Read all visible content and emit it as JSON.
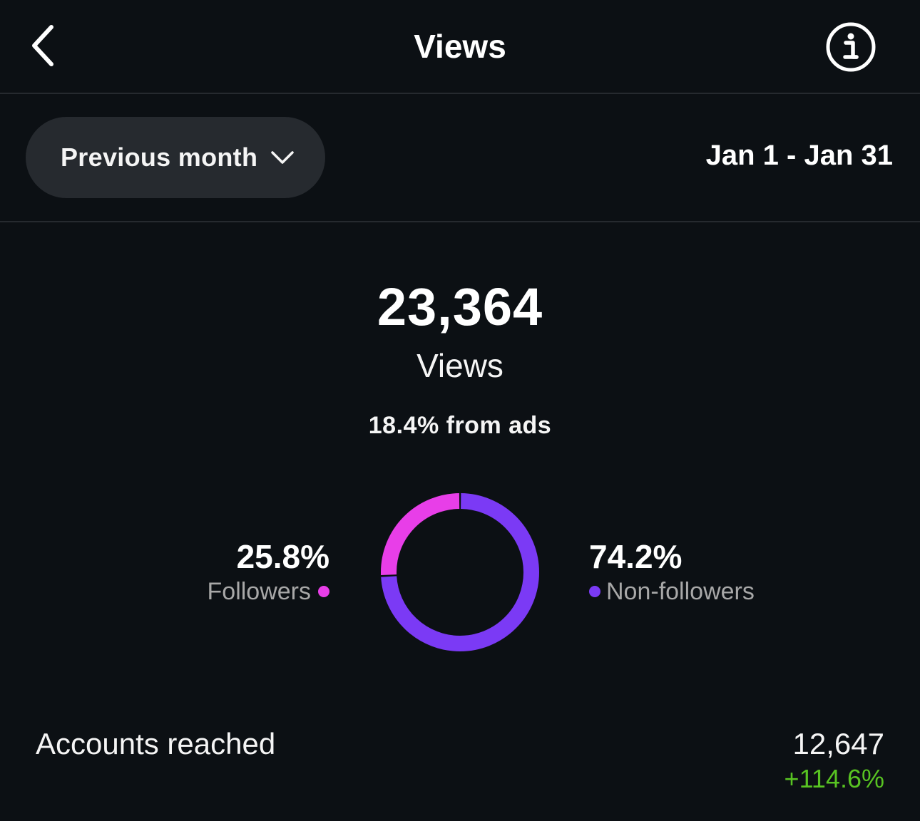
{
  "header": {
    "title": "Views",
    "back_icon": "chevron-left-icon",
    "info_icon": "info-icon"
  },
  "filter": {
    "period_label": "Previous month",
    "period_icon": "chevron-down-icon",
    "date_range": "Jan 1 - Jan 31"
  },
  "summary": {
    "total_value": "23,364",
    "total_label": "Views",
    "ads_note": "18.4% from ads"
  },
  "chart_data": {
    "type": "pie",
    "categories": [
      "Followers",
      "Non-followers"
    ],
    "values": [
      25.8,
      74.2
    ],
    "labels": [
      "25.8%",
      "74.2%"
    ],
    "colors": [
      "#e83ee8",
      "#7b3af5"
    ],
    "style": "donut"
  },
  "breakdown": {
    "followers": {
      "percent": "25.8%",
      "label": "Followers",
      "color": "#e83ee8"
    },
    "non_followers": {
      "percent": "74.2%",
      "label": "Non-followers",
      "color": "#7b3af5"
    }
  },
  "accounts": {
    "label": "Accounts reached",
    "value": "12,647",
    "change": "+114.6%",
    "change_color": "#58c322"
  }
}
